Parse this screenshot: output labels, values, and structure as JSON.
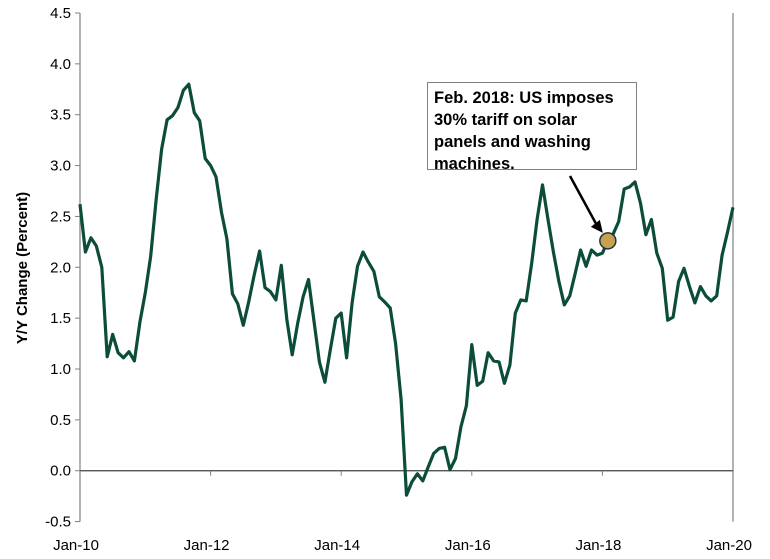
{
  "chart_data": {
    "type": "line",
    "title": "",
    "xlabel": "",
    "ylabel": "Y/Y Change (Percent)",
    "ylim": [
      -0.5,
      4.5
    ],
    "yticks": [
      "4.5",
      "4.0",
      "3.5",
      "3.0",
      "2.5",
      "2.0",
      "1.5",
      "1.0",
      "0.5",
      "0.0",
      "-0.5"
    ],
    "ytick_values": [
      4.5,
      4.0,
      3.5,
      3.0,
      2.5,
      2.0,
      1.5,
      1.0,
      0.5,
      0.0,
      -0.5
    ],
    "x_start": "Jan-10",
    "x_unit": "months since Jan-2010",
    "xlim": [
      0,
      120
    ],
    "xticks": [
      "Jan-10",
      "Jan-12",
      "Jan-14",
      "Jan-16",
      "Jan-18",
      "Jan-20"
    ],
    "xtick_values": [
      0,
      24,
      48,
      72,
      96,
      120
    ],
    "grid": false,
    "series": [
      {
        "name": "Y/Y Change",
        "color": "#0b4d3a",
        "values": [
          2.62,
          2.15,
          2.29,
          2.21,
          2.0,
          1.12,
          1.34,
          1.16,
          1.11,
          1.17,
          1.08,
          1.46,
          1.75,
          2.11,
          2.67,
          3.16,
          3.45,
          3.49,
          3.57,
          3.74,
          3.8,
          3.52,
          3.44,
          3.07,
          3.0,
          2.89,
          2.54,
          2.28,
          1.74,
          1.64,
          1.43,
          1.66,
          1.92,
          2.16,
          1.8,
          1.76,
          1.68,
          2.02,
          1.49,
          1.14,
          1.45,
          1.71,
          1.88,
          1.47,
          1.07,
          0.87,
          1.19,
          1.5,
          1.55,
          1.11,
          1.65,
          2.01,
          2.15,
          2.05,
          1.96,
          1.71,
          1.66,
          1.6,
          1.25,
          0.7,
          -0.24,
          -0.11,
          -0.03,
          -0.1,
          0.04,
          0.17,
          0.22,
          0.23,
          0.01,
          0.12,
          0.43,
          0.64,
          1.24,
          0.84,
          0.88,
          1.16,
          1.08,
          1.07,
          0.86,
          1.04,
          1.55,
          1.68,
          1.67,
          2.04,
          2.47,
          2.81,
          2.47,
          2.15,
          1.86,
          1.63,
          1.72,
          1.94,
          2.17,
          2.01,
          2.17,
          2.12,
          2.14,
          2.26,
          2.33,
          2.45,
          2.77,
          2.79,
          2.84,
          2.63,
          2.32,
          2.47,
          2.14,
          1.99,
          1.48,
          1.51,
          1.86,
          1.99,
          1.81,
          1.65,
          1.81,
          1.72,
          1.67,
          1.72,
          2.12,
          2.35,
          2.59
        ]
      }
    ],
    "highlight_point": {
      "x": 97,
      "y": 2.26,
      "color": "#c9a050"
    },
    "annotation": {
      "lines": [
        "Feb. 2018: US imposes",
        "30% tariff on solar",
        "panels and washing",
        "machines."
      ]
    }
  }
}
